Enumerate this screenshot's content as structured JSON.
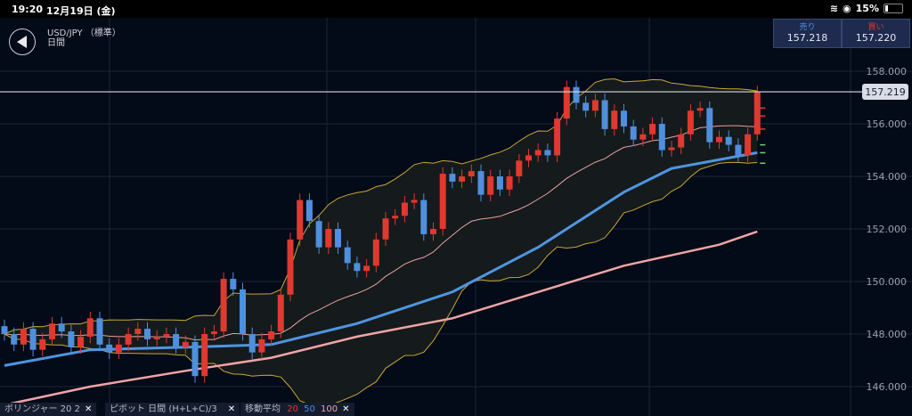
{
  "status": {
    "time": "19:20",
    "date": "12月19日 (金)",
    "battery": "15%"
  },
  "header": {
    "symbol": "USD/JPY （標準）",
    "period": "日間"
  },
  "quotes": {
    "sell_label": "売り",
    "sell": "157.218",
    "buy_label": "買い",
    "buy": "157.220"
  },
  "indicators": {
    "bollinger": "ボリンジャー  20  2",
    "pivot": "ピボット  日間  (H+L+C)/3",
    "ma_label": "移動平均",
    "ma20": "20",
    "ma50": "50",
    "ma100": "100",
    "close": "✕"
  },
  "colors": {
    "up": "#e0392f",
    "down": "#4f8fdc",
    "bb": "#c9a834",
    "ma20": "#e8a0a0",
    "ma50": "#4f95e0",
    "ma100": "#f0a4a4",
    "bg": "#030a18"
  },
  "chart_data": {
    "type": "candlestick",
    "symbol": "USD/JPY",
    "timeframe": "daily",
    "ylim": [
      145.5,
      158.7
    ],
    "yticks": [
      "158.000",
      "156.000",
      "154.000",
      "152.000",
      "150.000",
      "148.000",
      "146.000"
    ],
    "yticks_values": [
      158,
      156,
      154,
      152,
      150,
      148,
      146
    ],
    "current_price": 157.219,
    "current_price_label": "157.219",
    "closes": [
      148.0,
      147.6,
      148.2,
      147.4,
      147.8,
      148.4,
      148.1,
      147.5,
      147.9,
      148.6,
      147.6,
      147.3,
      147.6,
      148.0,
      148.2,
      147.8,
      147.9,
      148.0,
      147.5,
      147.7,
      146.4,
      148.0,
      148.1,
      150.1,
      149.7,
      148.0,
      147.3,
      147.8,
      148.1,
      149.5,
      151.6,
      153.1,
      152.3,
      151.3,
      152.0,
      151.3,
      150.7,
      150.4,
      150.6,
      151.6,
      152.4,
      152.5,
      153.0,
      153.1,
      151.8,
      152.0,
      154.1,
      153.8,
      154.0,
      154.2,
      153.3,
      154.0,
      153.5,
      154.0,
      154.6,
      154.8,
      155.0,
      154.8,
      156.2,
      157.4,
      156.8,
      156.5,
      156.9,
      155.8,
      156.5,
      155.9,
      155.4,
      155.6,
      156.0,
      155.0,
      155.1,
      155.6,
      156.5,
      156.6,
      155.3,
      155.5,
      155.2,
      154.8,
      155.6,
      157.2
    ],
    "first_open": 148.3,
    "wick": 0.25,
    "ma50_samples": [
      [
        0,
        146.8
      ],
      [
        9,
        147.4
      ],
      [
        19,
        147.5
      ],
      [
        28,
        147.6
      ],
      [
        37,
        148.4
      ],
      [
        47,
        149.6
      ],
      [
        56,
        151.3
      ],
      [
        65,
        153.4
      ],
      [
        70,
        154.3
      ],
      [
        79,
        154.9
      ]
    ],
    "ma100_samples": [
      [
        0,
        145.3
      ],
      [
        9,
        146.0
      ],
      [
        19,
        146.6
      ],
      [
        28,
        147.1
      ],
      [
        37,
        147.9
      ],
      [
        47,
        148.6
      ],
      [
        56,
        149.6
      ],
      [
        65,
        150.6
      ],
      [
        75,
        151.4
      ],
      [
        79,
        151.9
      ]
    ],
    "pivot_resistance": [
      156.6,
      156.3,
      155.8
    ],
    "pivot_support": [
      155.2,
      154.9,
      154.5
    ],
    "bollinger_period": 20,
    "bollinger_sd": 2
  }
}
